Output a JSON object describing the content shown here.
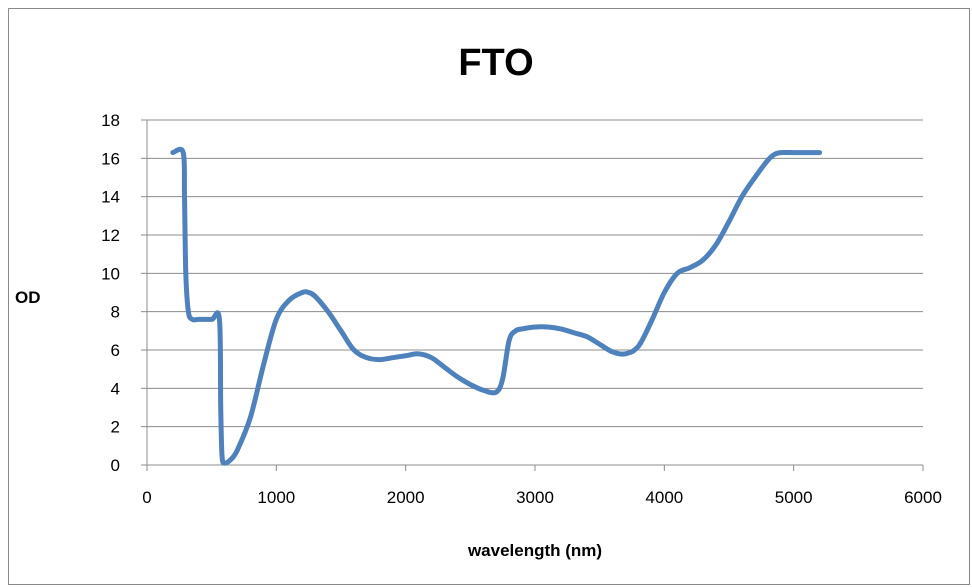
{
  "chart_data": {
    "type": "line",
    "title": "FTO",
    "xlabel": "wavelength (nm)",
    "ylabel": "OD",
    "xlim": [
      0,
      6000
    ],
    "ylim": [
      0,
      18
    ],
    "x_ticks": [
      0,
      1000,
      2000,
      3000,
      4000,
      5000,
      6000
    ],
    "y_ticks": [
      0,
      2,
      4,
      6,
      8,
      10,
      12,
      14,
      16,
      18
    ],
    "grid": "horizontal",
    "legend": "none",
    "series": [
      {
        "color": "#4f81bd",
        "x": [
          200,
          280,
          290,
          300,
          320,
          350,
          400,
          500,
          560,
          570,
          580,
          600,
          650,
          700,
          800,
          900,
          1000,
          1100,
          1200,
          1250,
          1300,
          1400,
          1500,
          1600,
          1700,
          1800,
          1900,
          2000,
          2100,
          2200,
          2300,
          2400,
          2500,
          2600,
          2700,
          2750,
          2800,
          2850,
          2900,
          3000,
          3100,
          3200,
          3300,
          3400,
          3500,
          3600,
          3700,
          3800,
          3900,
          4000,
          4100,
          4200,
          4300,
          4400,
          4500,
          4600,
          4700,
          4800,
          4850,
          4900,
          5000,
          5100,
          5200
        ],
        "y": [
          16.3,
          16.3,
          14,
          10,
          8,
          7.6,
          7.6,
          7.6,
          7.6,
          3,
          0.5,
          0.1,
          0.3,
          0.8,
          2.5,
          5.2,
          7.6,
          8.6,
          9.0,
          9.0,
          8.8,
          8.0,
          7.0,
          6.0,
          5.6,
          5.5,
          5.6,
          5.7,
          5.8,
          5.6,
          5.1,
          4.6,
          4.2,
          3.9,
          3.8,
          4.5,
          6.5,
          7.0,
          7.1,
          7.2,
          7.2,
          7.1,
          6.9,
          6.7,
          6.3,
          5.9,
          5.8,
          6.2,
          7.5,
          9.0,
          10.0,
          10.3,
          10.7,
          11.5,
          12.7,
          14.0,
          15.0,
          15.9,
          16.2,
          16.3,
          16.3,
          16.3,
          16.3
        ]
      }
    ]
  }
}
